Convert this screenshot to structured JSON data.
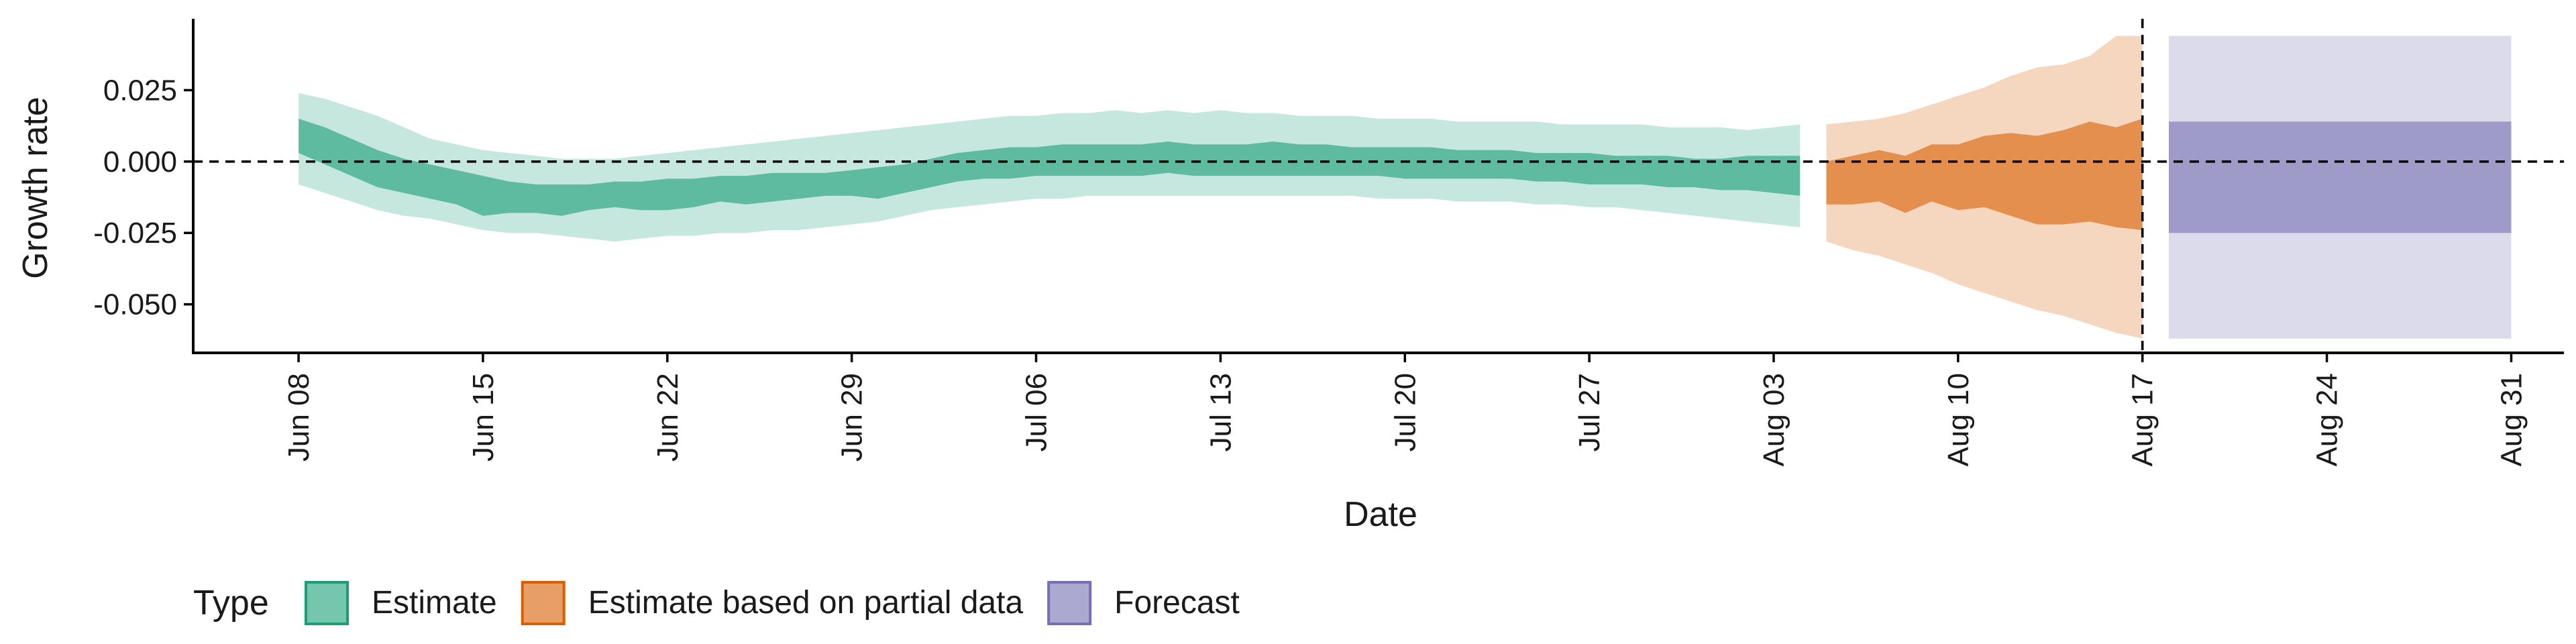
{
  "chart_data": {
    "type": "area",
    "xlabel": "Date",
    "ylabel": "Growth rate",
    "x_ticks": [
      "Jun 08",
      "Jun 15",
      "Jun 22",
      "Jun 29",
      "Jul 06",
      "Jul 13",
      "Jul 20",
      "Jul 27",
      "Aug 03",
      "Aug 10",
      "Aug 17",
      "Aug 24",
      "Aug 31"
    ],
    "y_ticks": [
      "0.025",
      "0.000",
      "-0.025",
      "-0.050"
    ],
    "xlim": [
      "2020-06-04",
      "2020-09-02"
    ],
    "ylim": [
      -0.067,
      0.05
    ],
    "reference_lines": {
      "horizontal_y": 0.0,
      "vertical_x": "2020-08-17",
      "style": "dashed"
    },
    "grid": false,
    "legend": {
      "title": "Type",
      "position": "bottom-left",
      "entries": [
        {
          "label": "Estimate",
          "color": "#1b9e77"
        },
        {
          "label": "Estimate based on partial data",
          "color": "#d95f02"
        },
        {
          "label": "Forecast",
          "color": "#7570b3"
        }
      ]
    },
    "series": [
      {
        "name": "Estimate",
        "color": "#1b9e77",
        "x": [
          "2020-06-08",
          "2020-06-09",
          "2020-06-10",
          "2020-06-11",
          "2020-06-12",
          "2020-06-13",
          "2020-06-14",
          "2020-06-15",
          "2020-06-16",
          "2020-06-17",
          "2020-06-18",
          "2020-06-19",
          "2020-06-20",
          "2020-06-21",
          "2020-06-22",
          "2020-06-23",
          "2020-06-24",
          "2020-06-25",
          "2020-06-26",
          "2020-06-27",
          "2020-06-28",
          "2020-06-29",
          "2020-06-30",
          "2020-07-01",
          "2020-07-02",
          "2020-07-03",
          "2020-07-04",
          "2020-07-05",
          "2020-07-06",
          "2020-07-07",
          "2020-07-08",
          "2020-07-09",
          "2020-07-10",
          "2020-07-11",
          "2020-07-12",
          "2020-07-13",
          "2020-07-14",
          "2020-07-15",
          "2020-07-16",
          "2020-07-17",
          "2020-07-18",
          "2020-07-19",
          "2020-07-20",
          "2020-07-21",
          "2020-07-22",
          "2020-07-23",
          "2020-07-24",
          "2020-07-25",
          "2020-07-26",
          "2020-07-27",
          "2020-07-28",
          "2020-07-29",
          "2020-07-30",
          "2020-07-31",
          "2020-08-01",
          "2020-08-02",
          "2020-08-03",
          "2020-08-04"
        ],
        "upper90": [
          0.024,
          0.022,
          0.019,
          0.016,
          0.012,
          0.008,
          0.006,
          0.004,
          0.003,
          0.002,
          0.001,
          0.001,
          0.001,
          0.002,
          0.003,
          0.004,
          0.005,
          0.006,
          0.007,
          0.008,
          0.009,
          0.01,
          0.011,
          0.012,
          0.013,
          0.014,
          0.015,
          0.016,
          0.016,
          0.017,
          0.017,
          0.018,
          0.017,
          0.018,
          0.017,
          0.018,
          0.017,
          0.017,
          0.016,
          0.016,
          0.016,
          0.015,
          0.015,
          0.015,
          0.014,
          0.014,
          0.014,
          0.014,
          0.013,
          0.013,
          0.013,
          0.013,
          0.012,
          0.012,
          0.012,
          0.011,
          0.012,
          0.013
        ],
        "upper50": [
          0.015,
          0.012,
          0.008,
          0.004,
          0.001,
          -0.001,
          -0.003,
          -0.005,
          -0.007,
          -0.008,
          -0.008,
          -0.008,
          -0.007,
          -0.007,
          -0.006,
          -0.006,
          -0.005,
          -0.005,
          -0.004,
          -0.004,
          -0.004,
          -0.003,
          -0.002,
          -0.001,
          0.001,
          0.003,
          0.004,
          0.005,
          0.005,
          0.006,
          0.006,
          0.006,
          0.006,
          0.007,
          0.006,
          0.006,
          0.006,
          0.007,
          0.006,
          0.006,
          0.005,
          0.005,
          0.005,
          0.005,
          0.004,
          0.004,
          0.004,
          0.003,
          0.003,
          0.003,
          0.002,
          0.002,
          0.002,
          0.001,
          0.001,
          0.002,
          0.002,
          0.002
        ],
        "lower50": [
          0.003,
          -0.001,
          -0.005,
          -0.009,
          -0.011,
          -0.013,
          -0.015,
          -0.019,
          -0.018,
          -0.018,
          -0.019,
          -0.017,
          -0.016,
          -0.017,
          -0.017,
          -0.016,
          -0.014,
          -0.015,
          -0.014,
          -0.013,
          -0.012,
          -0.012,
          -0.013,
          -0.011,
          -0.009,
          -0.007,
          -0.006,
          -0.006,
          -0.005,
          -0.005,
          -0.005,
          -0.005,
          -0.005,
          -0.004,
          -0.005,
          -0.005,
          -0.005,
          -0.005,
          -0.005,
          -0.005,
          -0.005,
          -0.005,
          -0.006,
          -0.006,
          -0.006,
          -0.006,
          -0.006,
          -0.007,
          -0.007,
          -0.008,
          -0.008,
          -0.008,
          -0.009,
          -0.009,
          -0.01,
          -0.01,
          -0.011,
          -0.012
        ],
        "lower90": [
          -0.008,
          -0.011,
          -0.014,
          -0.017,
          -0.019,
          -0.02,
          -0.022,
          -0.024,
          -0.025,
          -0.025,
          -0.026,
          -0.027,
          -0.028,
          -0.027,
          -0.026,
          -0.026,
          -0.025,
          -0.025,
          -0.024,
          -0.024,
          -0.023,
          -0.022,
          -0.021,
          -0.019,
          -0.017,
          -0.016,
          -0.015,
          -0.014,
          -0.013,
          -0.013,
          -0.012,
          -0.012,
          -0.012,
          -0.012,
          -0.012,
          -0.012,
          -0.012,
          -0.012,
          -0.012,
          -0.012,
          -0.012,
          -0.013,
          -0.013,
          -0.013,
          -0.014,
          -0.014,
          -0.014,
          -0.015,
          -0.015,
          -0.016,
          -0.016,
          -0.017,
          -0.018,
          -0.019,
          -0.02,
          -0.021,
          -0.022,
          -0.023
        ]
      },
      {
        "name": "Estimate based on partial data",
        "color": "#d95f02",
        "x": [
          "2020-08-05",
          "2020-08-06",
          "2020-08-07",
          "2020-08-08",
          "2020-08-09",
          "2020-08-10",
          "2020-08-11",
          "2020-08-12",
          "2020-08-13",
          "2020-08-14",
          "2020-08-15",
          "2020-08-16",
          "2020-08-17"
        ],
        "upper90": [
          0.013,
          0.014,
          0.015,
          0.017,
          0.02,
          0.023,
          0.026,
          0.03,
          0.033,
          0.034,
          0.037,
          0.044,
          0.044
        ],
        "upper50": [
          0.0,
          0.002,
          0.004,
          0.002,
          0.006,
          0.006,
          0.009,
          0.01,
          0.009,
          0.011,
          0.014,
          0.012,
          0.015
        ],
        "lower50": [
          -0.015,
          -0.015,
          -0.014,
          -0.018,
          -0.014,
          -0.017,
          -0.016,
          -0.019,
          -0.022,
          -0.022,
          -0.021,
          -0.023,
          -0.024
        ],
        "lower90": [
          -0.028,
          -0.031,
          -0.033,
          -0.036,
          -0.039,
          -0.043,
          -0.046,
          -0.049,
          -0.052,
          -0.054,
          -0.057,
          -0.06,
          -0.062
        ]
      },
      {
        "name": "Forecast",
        "color": "#7570b3",
        "x": [
          "2020-08-18",
          "2020-08-31"
        ],
        "upper90": [
          0.044,
          0.044
        ],
        "upper50": [
          0.014,
          0.014
        ],
        "lower50": [
          -0.025,
          -0.025
        ],
        "lower90": [
          -0.062,
          -0.062
        ]
      }
    ]
  }
}
